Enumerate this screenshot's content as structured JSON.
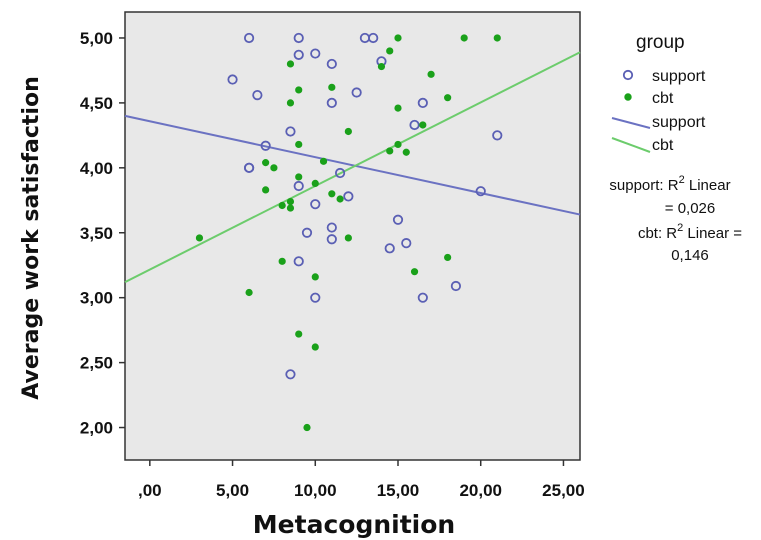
{
  "chart_data": {
    "type": "scatter",
    "xlabel": "Metacognition",
    "ylabel": "Average work satisfaction",
    "xlim": [
      -1.5,
      26
    ],
    "ylim": [
      1.75,
      5.2
    ],
    "x_ticks": [
      0,
      5,
      10,
      15,
      20,
      25
    ],
    "x_tick_labels": [
      ",00",
      "5,00",
      "10,00",
      "15,00",
      "20,00",
      "25,00"
    ],
    "y_ticks": [
      2,
      2.5,
      3,
      3.5,
      4,
      4.5,
      5
    ],
    "y_tick_labels": [
      "2,00",
      "2,50",
      "3,00",
      "3,50",
      "4,00",
      "4,50",
      "5,00"
    ],
    "grid": false,
    "legend": {
      "title": "group",
      "position": "right",
      "items": [
        {
          "label": "support",
          "kind": "marker-open-circle",
          "color": "#5a5fb4"
        },
        {
          "label": "cbt",
          "kind": "marker-filled-circle",
          "color": "#1aa11a"
        },
        {
          "label": "support",
          "kind": "line",
          "color": "#6b72c2"
        },
        {
          "label": "cbt",
          "kind": "line",
          "color": "#6ccc6c"
        }
      ]
    },
    "annotations": {
      "support_1": "support: R",
      "support_sup": "2",
      "support_2": " Linear",
      "support_3": "= 0,026",
      "cbt_1": "cbt: R",
      "cbt_sup": "2",
      "cbt_2": " Linear =",
      "cbt_3": "0,146"
    },
    "series": [
      {
        "name": "support",
        "marker": "open-circle",
        "color": "#5a5fb4",
        "points": [
          [
            6,
            5.0
          ],
          [
            9,
            5.0
          ],
          [
            13,
            5.0
          ],
          [
            13.5,
            5.0
          ],
          [
            9,
            4.87
          ],
          [
            10,
            4.88
          ],
          [
            11,
            4.8
          ],
          [
            14,
            4.82
          ],
          [
            5,
            4.68
          ],
          [
            6.5,
            4.56
          ],
          [
            11,
            4.5
          ],
          [
            12.5,
            4.58
          ],
          [
            16.5,
            4.5
          ],
          [
            8.5,
            4.28
          ],
          [
            16,
            4.33
          ],
          [
            21,
            4.25
          ],
          [
            7,
            4.17
          ],
          [
            6,
            4.0
          ],
          [
            6,
            4.0
          ],
          [
            11.5,
            3.96
          ],
          [
            9,
            3.86
          ],
          [
            20,
            3.82
          ],
          [
            10,
            3.72
          ],
          [
            12,
            3.78
          ],
          [
            15,
            3.6
          ],
          [
            11,
            3.54
          ],
          [
            11,
            3.45
          ],
          [
            9.5,
            3.5
          ],
          [
            15.5,
            3.42
          ],
          [
            14.5,
            3.38
          ],
          [
            9,
            3.28
          ],
          [
            18.5,
            3.09
          ],
          [
            10,
            3.0
          ],
          [
            16.5,
            3.0
          ],
          [
            8.5,
            2.41
          ]
        ]
      },
      {
        "name": "cbt",
        "marker": "filled-circle",
        "color": "#1aa11a",
        "points": [
          [
            15,
            5.0
          ],
          [
            19,
            5.0
          ],
          [
            21,
            5.0
          ],
          [
            14.5,
            4.9
          ],
          [
            8.5,
            4.8
          ],
          [
            14,
            4.78
          ],
          [
            17,
            4.72
          ],
          [
            9,
            4.6
          ],
          [
            11,
            4.62
          ],
          [
            8.5,
            4.5
          ],
          [
            15,
            4.46
          ],
          [
            18,
            4.54
          ],
          [
            16.5,
            4.33
          ],
          [
            12,
            4.28
          ],
          [
            9,
            4.18
          ],
          [
            15,
            4.18
          ],
          [
            14.5,
            4.13
          ],
          [
            15.5,
            4.12
          ],
          [
            7,
            4.04
          ],
          [
            10.5,
            4.05
          ],
          [
            7.5,
            4.0
          ],
          [
            9,
            3.93
          ],
          [
            10,
            3.88
          ],
          [
            7,
            3.83
          ],
          [
            11,
            3.8
          ],
          [
            11.5,
            3.76
          ],
          [
            8.5,
            3.74
          ],
          [
            8,
            3.71
          ],
          [
            8.5,
            3.69
          ],
          [
            3,
            3.46
          ],
          [
            12,
            3.46
          ],
          [
            18,
            3.31
          ],
          [
            8,
            3.28
          ],
          [
            16,
            3.2
          ],
          [
            10,
            3.16
          ],
          [
            6,
            3.04
          ],
          [
            9,
            2.72
          ],
          [
            10,
            2.62
          ],
          [
            9.5,
            2.0
          ]
        ]
      }
    ],
    "fit_lines": [
      {
        "name": "support",
        "color": "#6b72c2",
        "x": [
          -1.5,
          26
        ],
        "y": [
          4.4,
          3.64
        ]
      },
      {
        "name": "cbt",
        "color": "#6ccc6c",
        "x": [
          -1.5,
          26
        ],
        "y": [
          3.12,
          4.89
        ]
      }
    ]
  }
}
